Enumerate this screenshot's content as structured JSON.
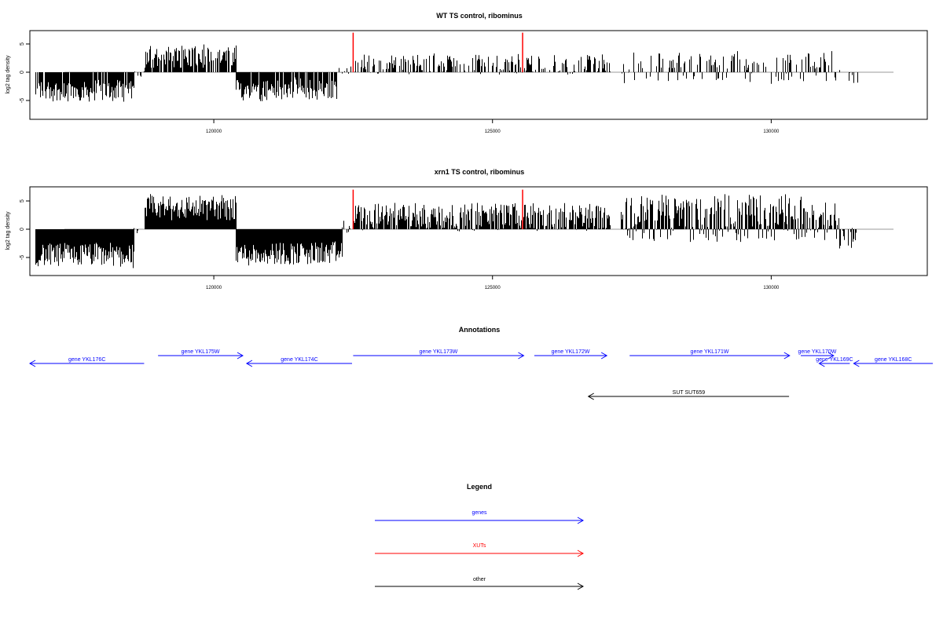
{
  "chart_data": [
    {
      "type": "bar",
      "title": "WT TS control, ribominus",
      "ylabel": "log2 tag density",
      "xlim": [
        116700,
        132800
      ],
      "ylim": [
        -8,
        8
      ],
      "xticks": [
        120000,
        125000,
        130000
      ],
      "yticks": [
        -5,
        0,
        5
      ],
      "grid": false,
      "segments": [
        {
          "start": 116800,
          "end": 118560,
          "min": -5.2,
          "max": -1.0,
          "mean": -3.3,
          "density": 0.85
        },
        {
          "start": 118570,
          "end": 118750,
          "min": -0.9,
          "max": 0.4,
          "mean": -0.2,
          "density": 0.25
        },
        {
          "start": 118760,
          "end": 120400,
          "min": 0.8,
          "max": 5.8,
          "mean": 2.6,
          "density": 0.85
        },
        {
          "start": 120400,
          "end": 122200,
          "min": -5.3,
          "max": -0.8,
          "mean": -3.0,
          "density": 0.85
        },
        {
          "start": 122200,
          "end": 122500,
          "min": -0.6,
          "max": 1.0,
          "mean": 0.2,
          "density": 0.3
        },
        {
          "start": 122500,
          "end": 127100,
          "min": -0.4,
          "max": 3.5,
          "mean": 1.4,
          "density": 0.55
        },
        {
          "start": 127300,
          "end": 131300,
          "min": -2.8,
          "max": 3.8,
          "mean": 0.9,
          "density": 0.45
        },
        {
          "start": 131300,
          "end": 131550,
          "min": -2.6,
          "max": 0.3,
          "mean": -1.2,
          "density": 0.3
        }
      ],
      "markers": [
        {
          "x": 122500,
          "value": 7.0,
          "color": "#ff0000"
        },
        {
          "x": 125540,
          "value": 7.0,
          "color": "#ff0000"
        }
      ]
    },
    {
      "type": "bar",
      "title": "xrn1 TS control, ribominus",
      "ylabel": "log2 tag density",
      "xlim": [
        116700,
        132800
      ],
      "ylim": [
        -8,
        8
      ],
      "xticks": [
        120000,
        125000,
        130000
      ],
      "yticks": [
        -5,
        0,
        5
      ],
      "grid": false,
      "segments": [
        {
          "start": 116800,
          "end": 118560,
          "min": -7.0,
          "max": -2.0,
          "mean": -4.6,
          "density": 1.0
        },
        {
          "start": 118560,
          "end": 118760,
          "min": -1.2,
          "max": 0.8,
          "mean": -0.3,
          "density": 0.3
        },
        {
          "start": 118760,
          "end": 120400,
          "min": 1.5,
          "max": 6.8,
          "mean": 3.8,
          "density": 1.0
        },
        {
          "start": 120400,
          "end": 122300,
          "min": -6.8,
          "max": -2.0,
          "mean": -4.3,
          "density": 1.0
        },
        {
          "start": 122300,
          "end": 122500,
          "min": -0.8,
          "max": 1.5,
          "mean": 0.3,
          "density": 0.35
        },
        {
          "start": 122500,
          "end": 127100,
          "min": -0.8,
          "max": 4.8,
          "mean": 2.2,
          "density": 0.85
        },
        {
          "start": 127300,
          "end": 130550,
          "min": -3.5,
          "max": 6.2,
          "mean": 2.0,
          "density": 0.9
        },
        {
          "start": 130550,
          "end": 131200,
          "min": -3.0,
          "max": 5.0,
          "mean": 1.5,
          "density": 0.85
        },
        {
          "start": 131200,
          "end": 131550,
          "min": -4.8,
          "max": 0.5,
          "mean": -1.8,
          "density": 0.6
        }
      ],
      "markers": [
        {
          "x": 122500,
          "value": 7.0,
          "color": "#ff0000"
        },
        {
          "x": 125540,
          "value": 7.0,
          "color": "#ff0000"
        }
      ]
    }
  ],
  "annotations": {
    "title": "Annotations",
    "xlim": [
      116700,
      132800
    ],
    "features": [
      {
        "label": "gene YKL176C",
        "start": 116700,
        "end": 118750,
        "strand": "-",
        "type": "gene",
        "row": 1
      },
      {
        "label": "gene YKL175W",
        "start": 119000,
        "end": 120520,
        "strand": "+",
        "type": "gene",
        "row": 0
      },
      {
        "label": "gene YKL174C",
        "start": 120590,
        "end": 122480,
        "strand": "-",
        "type": "gene",
        "row": 1
      },
      {
        "label": "gene YKL173W",
        "start": 122500,
        "end": 125560,
        "strand": "+",
        "type": "gene",
        "row": 0
      },
      {
        "label": "gene YKL172W",
        "start": 125750,
        "end": 127050,
        "strand": "+",
        "type": "gene",
        "row": 0
      },
      {
        "label": "gene YKL171W",
        "start": 127460,
        "end": 130330,
        "strand": "+",
        "type": "gene",
        "row": 0
      },
      {
        "label": "gene YKL170W",
        "start": 130530,
        "end": 131120,
        "strand": "+",
        "type": "gene",
        "row": 0
      },
      {
        "label": "gene YKL169C",
        "start": 130860,
        "end": 131410,
        "strand": "-",
        "type": "gene",
        "row": 1
      },
      {
        "label": "gene YKL168C",
        "start": 131480,
        "end": 132900,
        "strand": "-",
        "type": "gene",
        "row": 1
      },
      {
        "label": "SUT SUT659",
        "start": 126720,
        "end": 130320,
        "strand": "-",
        "type": "other",
        "row": 2
      }
    ]
  },
  "legend": {
    "title": "Legend",
    "items": [
      {
        "label": "genes",
        "color": "#0000ff"
      },
      {
        "label": "XUTs",
        "color": "#ff0000"
      },
      {
        "label": "other",
        "color": "#000000"
      }
    ]
  }
}
